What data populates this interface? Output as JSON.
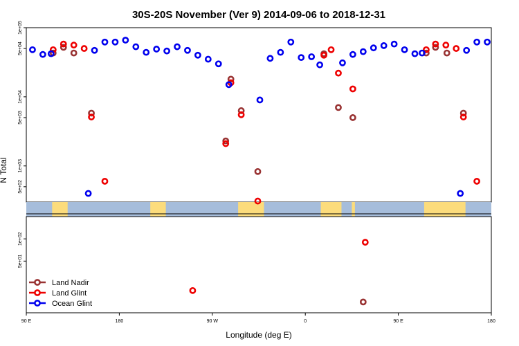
{
  "chart_data": {
    "type": "scatter",
    "title": "30S-20S November (Ver 9)   2014-09-06 to 2018-12-31",
    "xlabel": "Longitude (deg E)",
    "ylabel": "N Total",
    "x_ticks": [
      {
        "lon": -270,
        "label": "90 E"
      },
      {
        "lon": -180,
        "label": "180"
      },
      {
        "lon": -90,
        "label": "90 W"
      },
      {
        "lon": 0,
        "label": "0"
      },
      {
        "lon": 90,
        "label": "90 E"
      },
      {
        "lon": 180,
        "label": "180"
      }
    ],
    "xlim": [
      -270,
      180
    ],
    "upper_panel": {
      "scale": "log",
      "ylim": [
        300,
        100000
      ],
      "y_ticks": [
        {
          "value": 500,
          "label": "5e+02"
        },
        {
          "value": 1000,
          "label": "1e+03"
        },
        {
          "value": 5000,
          "label": "5e+03"
        },
        {
          "value": 10000,
          "label": "1e+04"
        },
        {
          "value": 50000,
          "label": "5e+04"
        },
        {
          "value": 100000,
          "label": "1e+05"
        }
      ]
    },
    "lower_panel": {
      "scale": "log",
      "ylim": [
        10,
        200
      ],
      "y_ticks": [
        {
          "value": 50,
          "label": "5e+01"
        },
        {
          "value": 100,
          "label": "1e+02"
        }
      ]
    },
    "map_strip": {
      "ocean_color": "#a6bddb",
      "land_color": "#fcdc7c",
      "land_spans": [
        [
          -245,
          -230
        ],
        [
          -150,
          -135
        ],
        [
          -65,
          -40
        ],
        [
          15,
          35
        ],
        [
          45,
          48
        ],
        [
          115,
          155
        ]
      ]
    },
    "series": [
      {
        "name": "Land Nadir",
        "color": "#993333",
        "points": [
          {
            "lon": -244,
            "value": 43000
          },
          {
            "lon": -234,
            "value": 52000
          },
          {
            "lon": -224,
            "value": 43000
          },
          {
            "lon": -207,
            "value": 5800
          },
          {
            "lon": -77,
            "value": 2300
          },
          {
            "lon": -72,
            "value": 18000
          },
          {
            "lon": -62,
            "value": 6300
          },
          {
            "lon": -46,
            "value": 830
          },
          {
            "lon": 18,
            "value": 42000
          },
          {
            "lon": 32,
            "value": 7000
          },
          {
            "lon": 46,
            "value": 5000
          },
          {
            "lon": 117,
            "value": 43000
          },
          {
            "lon": 126,
            "value": 52000
          },
          {
            "lon": 137,
            "value": 43000
          },
          {
            "lon": 153,
            "value": 5800
          },
          {
            "lon": 56,
            "value": 14,
            "panel": "lower"
          }
        ]
      },
      {
        "name": "Land Glint",
        "color": "#ee0000",
        "points": [
          {
            "lon": -244,
            "value": 48000
          },
          {
            "lon": -234,
            "value": 58000
          },
          {
            "lon": -224,
            "value": 56000
          },
          {
            "lon": -214,
            "value": 50000
          },
          {
            "lon": -207,
            "value": 5100
          },
          {
            "lon": -194,
            "value": 600
          },
          {
            "lon": -77,
            "value": 2100
          },
          {
            "lon": -72,
            "value": 16000
          },
          {
            "lon": -62,
            "value": 5500
          },
          {
            "lon": -46,
            "value": 310
          },
          {
            "lon": 18,
            "value": 40000
          },
          {
            "lon": 25,
            "value": 48000
          },
          {
            "lon": 32,
            "value": 22000
          },
          {
            "lon": 46,
            "value": 13000
          },
          {
            "lon": 117,
            "value": 48000
          },
          {
            "lon": 126,
            "value": 58000
          },
          {
            "lon": 136,
            "value": 56000
          },
          {
            "lon": 146,
            "value": 50000
          },
          {
            "lon": 153,
            "value": 5100
          },
          {
            "lon": 166,
            "value": 600
          },
          {
            "lon": -109,
            "value": 20,
            "panel": "lower"
          },
          {
            "lon": 58,
            "value": 90,
            "panel": "lower"
          }
        ]
      },
      {
        "name": "Ocean Glint",
        "color": "#0000ee",
        "points": [
          {
            "lon": -264,
            "value": 48000
          },
          {
            "lon": -254,
            "value": 41000
          },
          {
            "lon": -246,
            "value": 42000
          },
          {
            "lon": -210,
            "value": 400
          },
          {
            "lon": -204,
            "value": 47000
          },
          {
            "lon": -194,
            "value": 62000
          },
          {
            "lon": -184,
            "value": 62000
          },
          {
            "lon": -174,
            "value": 66000
          },
          {
            "lon": -164,
            "value": 53000
          },
          {
            "lon": -154,
            "value": 44000
          },
          {
            "lon": -144,
            "value": 49000
          },
          {
            "lon": -134,
            "value": 46000
          },
          {
            "lon": -124,
            "value": 53000
          },
          {
            "lon": -114,
            "value": 47000
          },
          {
            "lon": -104,
            "value": 40000
          },
          {
            "lon": -94,
            "value": 35000
          },
          {
            "lon": -84,
            "value": 30000
          },
          {
            "lon": -74,
            "value": 15000
          },
          {
            "lon": -44,
            "value": 9000
          },
          {
            "lon": -34,
            "value": 36000
          },
          {
            "lon": -24,
            "value": 44000
          },
          {
            "lon": -14,
            "value": 62000
          },
          {
            "lon": -4,
            "value": 37000
          },
          {
            "lon": 6,
            "value": 38000
          },
          {
            "lon": 14,
            "value": 29000
          },
          {
            "lon": 36,
            "value": 31000
          },
          {
            "lon": 46,
            "value": 41000
          },
          {
            "lon": 56,
            "value": 45000
          },
          {
            "lon": 66,
            "value": 51000
          },
          {
            "lon": 76,
            "value": 55000
          },
          {
            "lon": 86,
            "value": 58000
          },
          {
            "lon": 96,
            "value": 48000
          },
          {
            "lon": 106,
            "value": 42000
          },
          {
            "lon": 113,
            "value": 43000
          },
          {
            "lon": 150,
            "value": 400
          },
          {
            "lon": 156,
            "value": 47000
          },
          {
            "lon": 166,
            "value": 62000
          },
          {
            "lon": 176,
            "value": 62000
          }
        ]
      }
    ]
  }
}
